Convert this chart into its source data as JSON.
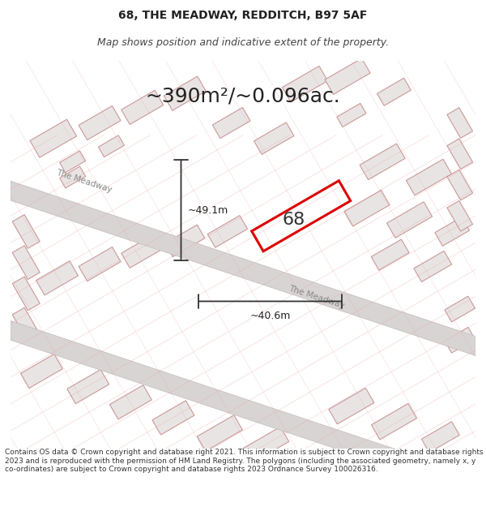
{
  "title": "68, THE MEADWAY, REDDITCH, B97 5AF",
  "subtitle": "Map shows position and indicative extent of the property.",
  "area_text": "~390m²/~0.096ac.",
  "dim_vertical": "~49.1m",
  "dim_horizontal": "~40.6m",
  "label_68": "68",
  "road_label_1": "The Meadway",
  "road_label_2": "The Meadway",
  "footer": "Contains OS data © Crown copyright and database right 2021. This information is subject to Crown copyright and database rights 2023 and is reproduced with the permission of HM Land Registry. The polygons (including the associated geometry, namely x, y co-ordinates) are subject to Crown copyright and database rights 2023 Ordnance Survey 100026316.",
  "bg_color": "#f0eeee",
  "map_bg": "#f5f2f2",
  "road_color": "#d8d0d0",
  "building_fill": "#e8e4e4",
  "building_stroke": "#cc9999",
  "plot_stroke": "#dd0000",
  "plot_fill": "none",
  "title_fontsize": 10,
  "subtitle_fontsize": 9,
  "area_fontsize": 18,
  "label_fontsize": 16,
  "footer_fontsize": 6.5
}
